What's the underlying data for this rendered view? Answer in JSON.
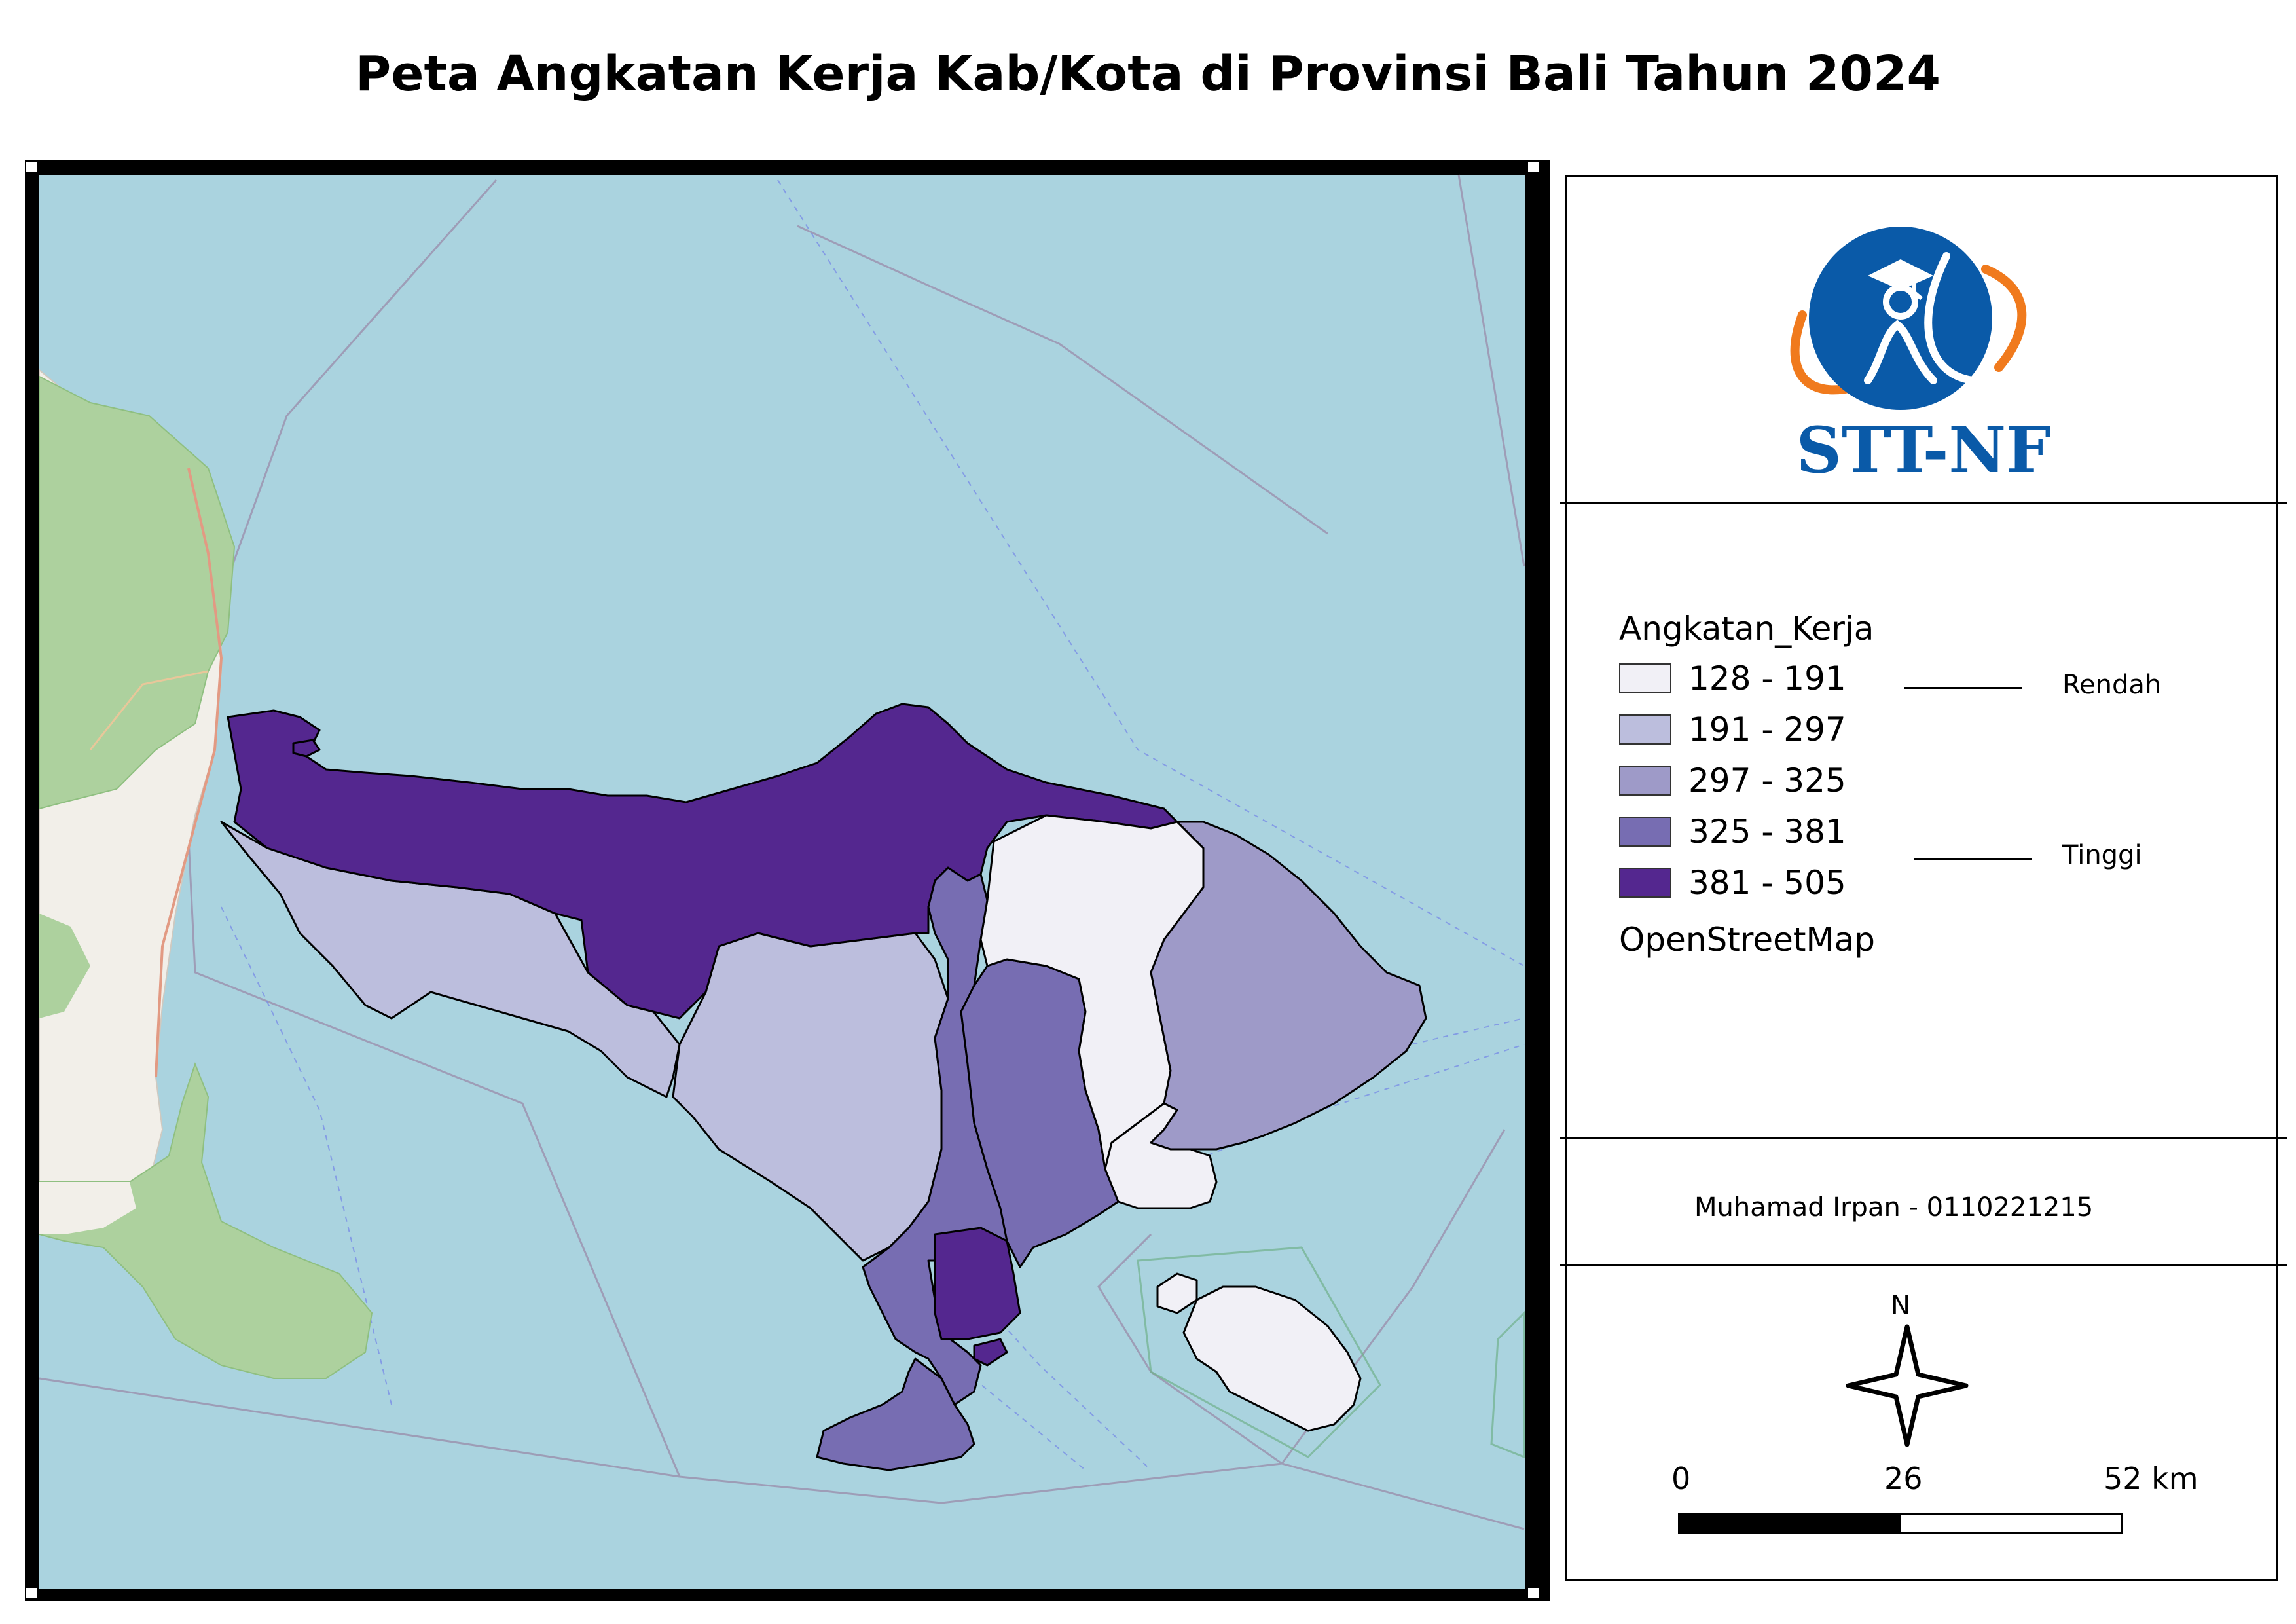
{
  "title": "Peta Angkatan Kerja Kab/Kota di Provinsi Bali Tahun 2024",
  "logo": {
    "text": "STT-NF",
    "primary_color": "#0a5aa8",
    "accent_color": "#f07a1d"
  },
  "legend": {
    "title": "Angkatan_Kerja",
    "classes": [
      {
        "label": "128 - 191",
        "color": "#f1f0f6"
      },
      {
        "label": "191 - 297",
        "color": "#bcbedd"
      },
      {
        "label": "297 - 325",
        "color": "#9e9ac8"
      },
      {
        "label": "325 - 381",
        "color": "#776db2"
      },
      {
        "label": "381 - 505",
        "color": "#54278f"
      }
    ],
    "source": "OpenStreetMap",
    "low_label": "Rendah",
    "high_label": "Tinggi"
  },
  "author": "Muhamad Irpan - 0110221215",
  "north_label": "N",
  "scale": {
    "labels": [
      "0",
      "26",
      "52 km"
    ]
  },
  "colors": {
    "sea": "#aad3df",
    "land": "#f2efe9",
    "forest": "#add19e"
  }
}
